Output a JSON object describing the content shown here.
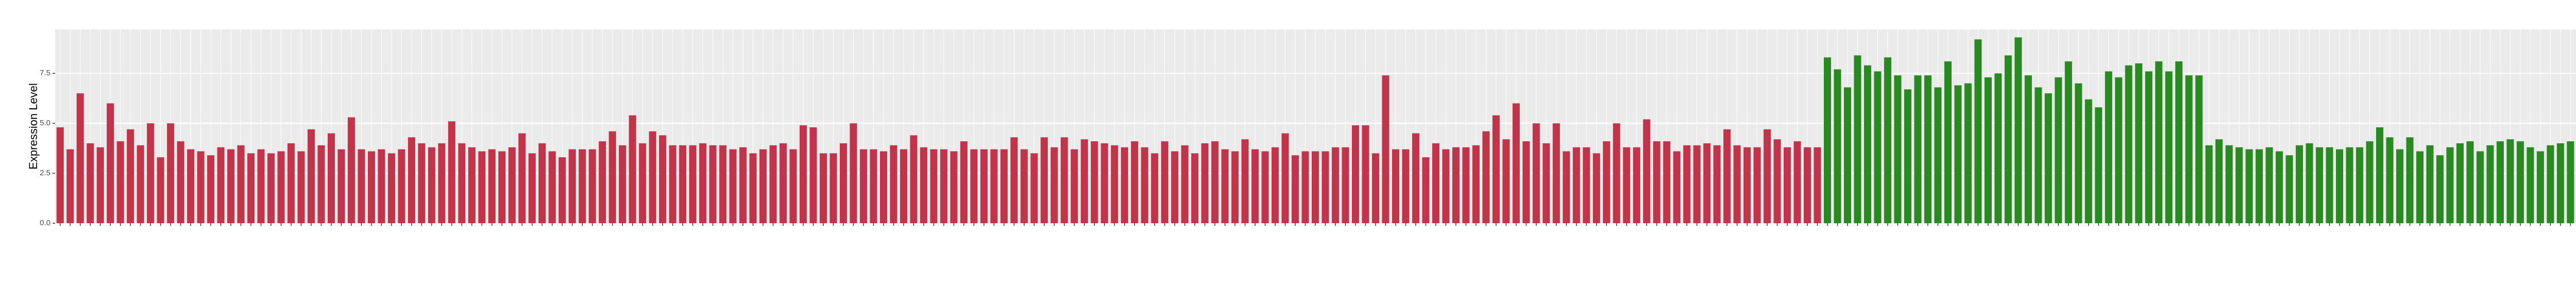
{
  "chart_data": {
    "type": "bar",
    "y_label": "Expression Level",
    "ylim": [
      0,
      9.7
    ],
    "yticks": [
      {
        "value": 0,
        "label": "0.0"
      },
      {
        "value": 2.5,
        "label": "2.5"
      },
      {
        "value": 5,
        "label": "5.0"
      },
      {
        "value": 7.5,
        "label": "7.5"
      }
    ],
    "grid": true,
    "values": [
      4.8,
      3.7,
      6.5,
      4.0,
      3.8,
      6.0,
      4.1,
      4.7,
      3.9,
      5.0,
      3.3,
      5.0,
      4.1,
      3.7,
      3.6,
      3.4,
      3.8,
      3.7,
      3.9,
      3.5,
      3.7,
      3.5,
      3.6,
      4.0,
      3.6,
      4.7,
      3.9,
      4.5,
      3.7,
      5.3,
      3.7,
      3.6,
      3.7,
      3.5,
      3.7,
      4.3,
      4.0,
      3.8,
      4.0,
      5.1,
      4.0,
      3.8,
      3.6,
      3.7,
      3.6,
      3.8,
      4.5,
      3.5,
      4.0,
      3.6,
      3.3,
      3.7,
      3.7,
      3.7,
      4.1,
      4.6,
      3.9,
      5.4,
      4.0,
      4.6,
      4.4,
      3.9,
      3.9,
      3.9,
      4.0,
      3.9,
      3.9,
      3.7,
      3.8,
      3.5,
      3.7,
      3.9,
      4.0,
      3.7,
      4.9,
      4.8,
      3.5,
      3.5,
      4.0,
      5.0,
      3.7,
      3.7,
      3.6,
      3.9,
      3.7,
      4.4,
      3.8,
      3.7,
      3.7,
      3.6,
      4.1,
      3.7,
      3.7,
      3.7,
      3.7,
      4.3,
      3.7,
      3.5,
      4.3,
      3.8,
      4.3,
      3.7,
      4.2,
      4.1,
      4.0,
      3.9,
      3.8,
      4.1,
      3.8,
      3.5,
      4.1,
      3.6,
      3.9,
      3.5,
      4.0,
      4.1,
      3.7,
      3.6,
      4.2,
      3.7,
      3.6,
      3.8,
      4.5,
      3.4,
      3.6,
      3.6,
      3.6,
      3.8,
      3.8,
      4.9,
      4.9,
      3.5,
      7.4,
      3.7,
      3.7,
      4.5,
      3.3,
      4.0,
      3.7,
      3.8,
      3.8,
      3.9,
      4.6,
      5.4,
      4.2,
      6.0,
      4.1,
      5.0,
      4.0,
      5.0,
      3.6,
      3.8,
      3.8,
      3.5,
      4.1,
      5.0,
      3.8,
      3.8,
      5.2,
      4.1,
      4.1,
      3.6,
      3.9,
      3.9,
      4.0,
      3.9,
      4.7,
      3.9,
      3.8,
      3.8,
      4.7,
      4.2,
      3.8,
      4.1,
      3.8,
      3.8,
      8.3,
      7.7,
      6.8,
      8.4,
      7.9,
      7.6,
      8.3,
      7.4,
      6.7,
      7.4,
      7.4,
      6.8,
      8.1,
      6.9,
      7.0,
      9.2,
      7.3,
      7.5,
      8.4,
      9.3,
      7.4,
      6.8,
      6.5,
      7.3,
      8.1,
      7.0,
      6.2,
      5.8,
      7.6,
      7.3,
      7.9,
      8.0,
      7.6,
      8.1,
      7.6,
      8.1,
      7.4,
      7.4,
      3.9,
      4.2,
      3.9,
      3.8,
      3.7,
      3.7,
      3.8,
      3.6,
      3.4,
      3.9,
      4.0,
      3.8,
      3.8,
      3.7,
      3.8,
      3.8,
      4.1,
      4.8,
      4.3,
      3.7,
      4.3,
      3.6,
      3.9,
      3.4,
      3.8,
      4.0,
      4.1,
      3.6,
      3.9,
      4.1,
      4.2,
      4.1,
      3.8,
      3.6,
      3.9,
      4.0,
      4.1,
      4.3,
      4.2,
      4.0,
      4.2,
      3.8,
      3.9,
      4.5,
      4.4
    ],
    "colors": [
      "#c2344a",
      "#c2344a",
      "#c2344a",
      "#c2344a",
      "#c2344a",
      "#c2344a",
      "#c2344a",
      "#c2344a",
      "#c2344a",
      "#c2344a",
      "#c2344a",
      "#c2344a",
      "#c2344a",
      "#c2344a",
      "#c2344a",
      "#c2344a",
      "#c2344a",
      "#c2344a",
      "#c2344a",
      "#c2344a",
      "#c2344a",
      "#c2344a",
      "#c2344a",
      "#c2344a",
      "#c2344a",
      "#c2344a",
      "#c2344a",
      "#c2344a",
      "#c2344a",
      "#c2344a",
      "#c2344a",
      "#c2344a",
      "#c2344a",
      "#c2344a",
      "#c2344a",
      "#c2344a",
      "#c2344a",
      "#c2344a",
      "#c2344a",
      "#c2344a",
      "#c2344a",
      "#c2344a",
      "#c2344a",
      "#c2344a",
      "#c2344a",
      "#c2344a",
      "#c2344a",
      "#c2344a",
      "#c2344a",
      "#c2344a",
      "#c2344a",
      "#c2344a",
      "#c2344a",
      "#c2344a",
      "#c2344a",
      "#c2344a",
      "#c2344a",
      "#c2344a",
      "#c2344a",
      "#c2344a",
      "#c2344a",
      "#c2344a",
      "#c2344a",
      "#c2344a",
      "#c2344a",
      "#c2344a",
      "#c2344a",
      "#c2344a",
      "#c2344a",
      "#c2344a",
      "#c2344a",
      "#c2344a",
      "#c2344a",
      "#c2344a",
      "#c2344a",
      "#c2344a",
      "#c2344a",
      "#c2344a",
      "#c2344a",
      "#c2344a",
      "#c2344a",
      "#c2344a",
      "#c2344a",
      "#c2344a",
      "#c2344a",
      "#c2344a",
      "#c2344a",
      "#c2344a",
      "#c2344a",
      "#c2344a",
      "#c2344a",
      "#c2344a",
      "#c2344a",
      "#c2344a",
      "#c2344a",
      "#c2344a",
      "#c2344a",
      "#c2344a",
      "#c2344a",
      "#c2344a",
      "#c2344a",
      "#c2344a",
      "#c2344a",
      "#c2344a",
      "#c2344a",
      "#c2344a",
      "#c2344a",
      "#c2344a",
      "#c2344a",
      "#c2344a",
      "#c2344a",
      "#c2344a",
      "#c2344a",
      "#c2344a",
      "#c2344a",
      "#c2344a",
      "#c2344a",
      "#c2344a",
      "#c2344a",
      "#c2344a",
      "#c2344a",
      "#c2344a",
      "#c2344a",
      "#c2344a",
      "#c2344a",
      "#c2344a",
      "#c2344a",
      "#c2344a",
      "#c2344a",
      "#c2344a",
      "#c2344a",
      "#c2344a",
      "#c2344a",
      "#c2344a",
      "#c2344a",
      "#c2344a",
      "#c2344a",
      "#c2344a",
      "#c2344a",
      "#c2344a",
      "#c2344a",
      "#c2344a",
      "#c2344a",
      "#c2344a",
      "#c2344a",
      "#c2344a",
      "#c2344a",
      "#c2344a",
      "#c2344a",
      "#c2344a",
      "#c2344a",
      "#c2344a",
      "#c2344a",
      "#c2344a",
      "#c2344a",
      "#c2344a",
      "#c2344a",
      "#c2344a",
      "#c2344a",
      "#c2344a",
      "#c2344a",
      "#c2344a",
      "#c2344a",
      "#c2344a",
      "#c2344a",
      "#c2344a",
      "#c2344a",
      "#c2344a",
      "#c2344a",
      "#c2344a",
      "#c2344a",
      "#c2344a",
      "#c2344a",
      "#c2344a",
      "#c2344a",
      "#c2344a",
      "#2a8a22",
      "#2a8a22",
      "#2a8a22",
      "#2a8a22",
      "#2a8a22",
      "#2a8a22",
      "#2a8a22",
      "#2a8a22",
      "#2a8a22",
      "#2a8a22",
      "#2a8a22",
      "#2a8a22",
      "#2a8a22",
      "#2a8a22",
      "#2a8a22",
      "#2a8a22",
      "#2a8a22",
      "#2a8a22",
      "#2a8a22",
      "#2a8a22",
      "#2a8a22",
      "#2a8a22",
      "#2a8a22",
      "#2a8a22",
      "#2a8a22",
      "#2a8a22",
      "#2a8a22",
      "#2a8a22",
      "#2a8a22",
      "#2a8a22",
      "#2a8a22",
      "#2a8a22",
      "#2a8a22",
      "#2a8a22",
      "#2a8a22",
      "#2a8a22",
      "#2a8a22",
      "#2a8a22",
      "#2a8a22",
      "#2a8a22",
      "#2a8a22",
      "#2a8a22",
      "#2a8a22",
      "#2a8a22",
      "#2a8a22",
      "#2a8a22",
      "#2a8a22",
      "#2a8a22",
      "#2a8a22",
      "#2a8a22",
      "#2a8a22",
      "#2a8a22",
      "#2a8a22",
      "#2a8a22",
      "#2a8a22",
      "#2a8a22",
      "#2a8a22",
      "#2a8a22",
      "#2a8a22",
      "#2a8a22",
      "#2a8a22",
      "#2a8a22",
      "#2a8a22",
      "#2a8a22",
      "#2a8a22",
      "#2a8a22",
      "#2a8a22",
      "#2a8a22",
      "#2a8a22",
      "#2a8a22",
      "#2a8a22",
      "#2a8a22",
      "#2a8a22",
      "#2a8a22",
      "#2a8a22",
      "#2a8a22",
      "#2a8a22",
      "#2a8a22",
      "#2a8a22",
      "#2a8a22",
      "#2a8a22",
      "#2a8a22",
      "#2a8a22"
    ]
  }
}
